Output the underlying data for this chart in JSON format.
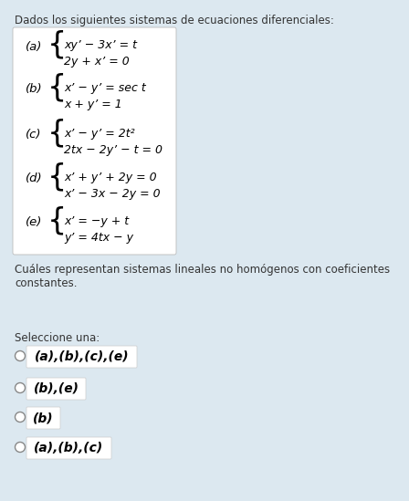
{
  "bg_color": "#dce8f0",
  "header_text": "Dados los siguientes sistemas de ecuaciones diferenciales:",
  "header_fontsize": 8.5,
  "systems": [
    {
      "label": "(a)",
      "line1": "xy’ − 3x’ = t",
      "line2": "2y + x’ = 0"
    },
    {
      "label": "(b)",
      "line1": "x’ − y’ = sec t",
      "line2": "x + y’ = 1"
    },
    {
      "label": "(c)",
      "line1": "x’ − y’ = 2t²",
      "line2": "2tx − 2y’ − t = 0"
    },
    {
      "label": "(d)",
      "line1": "x’ + y’ + 2y = 0",
      "line2": "x’ − 3x − 2y = 0"
    },
    {
      "label": "(e)",
      "line1": "x’ = −y + t",
      "line2": "y’ = 4tx − y"
    }
  ],
  "question_text": "Cuáles representan sistemas lineales no homógenos con coeficientes constantes.",
  "select_text": "Seleccione una:",
  "options": [
    "(a),(b),(c),(e)",
    "(b),(e)",
    "(b)",
    "(a),(b),(c)"
  ]
}
